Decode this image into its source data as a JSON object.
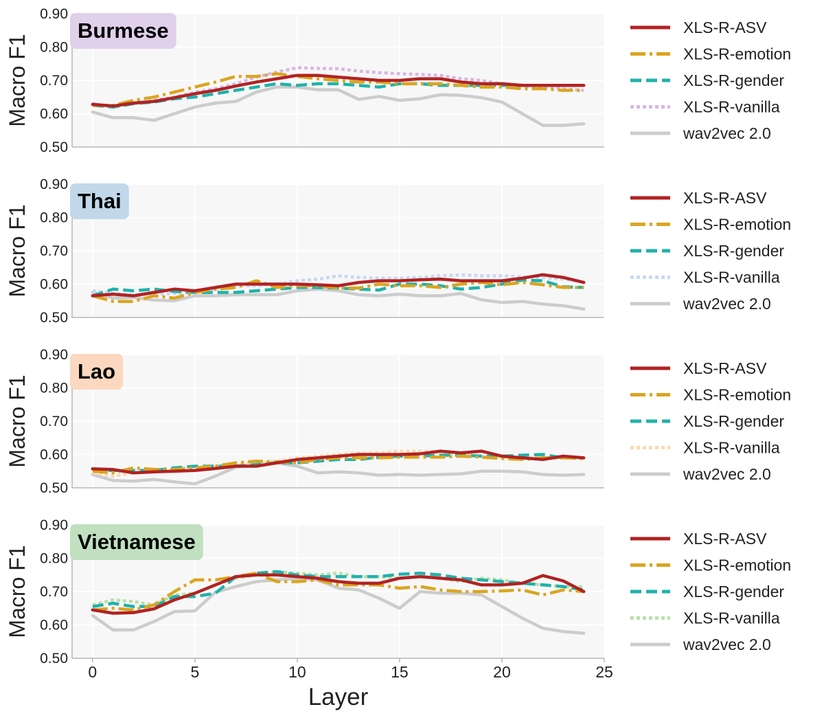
{
  "chart_data": {
    "type": "line",
    "xlabel": "Layer",
    "ylabel": "Macro F1",
    "xlim": [
      -1,
      25
    ],
    "ylim": [
      0.5,
      0.9
    ],
    "xticks": [
      "0",
      "5",
      "10",
      "15",
      "20",
      "25"
    ],
    "yticks": [
      "0.50",
      "0.60",
      "0.70",
      "0.80",
      "0.90"
    ],
    "x": [
      0,
      1,
      2,
      3,
      4,
      5,
      6,
      7,
      8,
      9,
      10,
      11,
      12,
      13,
      14,
      15,
      16,
      17,
      18,
      19,
      20,
      21,
      22,
      23,
      24
    ],
    "colors": {
      "asv": "#b22222",
      "emotion": "#daa520",
      "gender": "#20b2aa",
      "wav2vec": "#cccccc"
    },
    "panels": [
      {
        "title": "Burmese",
        "title_bg": "#e0d0ea",
        "vanilla_color": "#d8b8e0",
        "series": [
          {
            "name": "XLS-R-ASV",
            "key": "asv",
            "values": [
              0.628,
              0.623,
              0.632,
              0.637,
              0.648,
              0.66,
              0.67,
              0.683,
              0.695,
              0.705,
              0.715,
              0.715,
              0.71,
              0.705,
              0.7,
              0.7,
              0.705,
              0.705,
              0.695,
              0.69,
              0.69,
              0.685,
              0.685,
              0.685,
              0.685
            ]
          },
          {
            "name": "XLS-R-emotion",
            "key": "emotion",
            "values": [
              0.625,
              0.625,
              0.64,
              0.65,
              0.665,
              0.68,
              0.695,
              0.712,
              0.712,
              0.72,
              0.712,
              0.705,
              0.7,
              0.695,
              0.695,
              0.69,
              0.69,
              0.69,
              0.685,
              0.68,
              0.68,
              0.675,
              0.675,
              0.67,
              0.67
            ]
          },
          {
            "name": "XLS-R-gender",
            "key": "gender",
            "values": [
              0.625,
              0.62,
              0.63,
              0.635,
              0.645,
              0.65,
              0.66,
              0.67,
              0.68,
              0.69,
              0.685,
              0.69,
              0.69,
              0.685,
              0.68,
              0.69,
              0.69,
              0.685,
              0.685,
              0.685,
              0.685,
              0.685,
              0.685,
              0.685,
              0.685
            ]
          },
          {
            "name": "XLS-R-vanilla",
            "key": "vanilla",
            "values": [
              0.63,
              0.62,
              0.63,
              0.64,
              0.65,
              0.665,
              0.675,
              0.69,
              0.71,
              0.725,
              0.738,
              0.736,
              0.735,
              0.728,
              0.723,
              0.72,
              0.718,
              0.715,
              0.705,
              0.7,
              0.69,
              0.685,
              0.68,
              0.675,
              0.67
            ]
          },
          {
            "name": "wav2vec 2.0",
            "key": "wav2vec",
            "values": [
              0.605,
              0.588,
              0.588,
              0.58,
              0.6,
              0.62,
              0.632,
              0.637,
              0.665,
              0.68,
              0.68,
              0.672,
              0.672,
              0.643,
              0.652,
              0.64,
              0.645,
              0.657,
              0.655,
              0.648,
              0.635,
              0.6,
              0.565,
              0.565,
              0.57
            ]
          }
        ]
      },
      {
        "title": "Thai",
        "title_bg": "#c0d8ea",
        "vanilla_color": "#c8d8f0",
        "series": [
          {
            "name": "XLS-R-ASV",
            "key": "asv",
            "values": [
              0.565,
              0.57,
              0.565,
              0.575,
              0.585,
              0.58,
              0.59,
              0.6,
              0.6,
              0.6,
              0.6,
              0.598,
              0.595,
              0.605,
              0.61,
              0.61,
              0.613,
              0.615,
              0.61,
              0.61,
              0.61,
              0.618,
              0.628,
              0.62,
              0.605
            ]
          },
          {
            "name": "XLS-R-emotion",
            "key": "emotion",
            "values": [
              0.565,
              0.548,
              0.548,
              0.565,
              0.558,
              0.575,
              0.585,
              0.59,
              0.61,
              0.59,
              0.595,
              0.595,
              0.588,
              0.588,
              0.6,
              0.595,
              0.595,
              0.59,
              0.6,
              0.605,
              0.598,
              0.605,
              0.598,
              0.59,
              0.59
            ]
          },
          {
            "name": "XLS-R-gender",
            "key": "gender",
            "values": [
              0.565,
              0.585,
              0.58,
              0.585,
              0.578,
              0.575,
              0.575,
              0.575,
              0.58,
              0.585,
              0.59,
              0.59,
              0.588,
              0.585,
              0.582,
              0.6,
              0.6,
              0.595,
              0.585,
              0.59,
              0.6,
              0.612,
              0.61,
              0.592,
              0.59
            ]
          },
          {
            "name": "XLS-R-vanilla",
            "key": "vanilla",
            "values": [
              0.58,
              0.572,
              0.568,
              0.57,
              0.572,
              0.575,
              0.585,
              0.595,
              0.595,
              0.6,
              0.61,
              0.615,
              0.625,
              0.62,
              0.618,
              0.618,
              0.62,
              0.625,
              0.628,
              0.625,
              0.625,
              0.622,
              0.62,
              0.615,
              0.605
            ]
          },
          {
            "name": "wav2vec 2.0",
            "key": "wav2vec",
            "values": [
              0.575,
              0.558,
              0.56,
              0.552,
              0.55,
              0.565,
              0.565,
              0.568,
              0.568,
              0.568,
              0.58,
              0.585,
              0.58,
              0.568,
              0.565,
              0.57,
              0.565,
              0.565,
              0.572,
              0.553,
              0.545,
              0.548,
              0.54,
              0.535,
              0.525
            ]
          }
        ]
      },
      {
        "title": "Lao",
        "title_bg": "#fcd8c0",
        "vanilla_color": "#fad8b0",
        "series": [
          {
            "name": "XLS-R-ASV",
            "key": "asv",
            "values": [
              0.557,
              0.555,
              0.545,
              0.548,
              0.55,
              0.552,
              0.558,
              0.565,
              0.565,
              0.575,
              0.585,
              0.59,
              0.595,
              0.6,
              0.6,
              0.6,
              0.602,
              0.61,
              0.605,
              0.61,
              0.595,
              0.59,
              0.585,
              0.595,
              0.59
            ]
          },
          {
            "name": "XLS-R-emotion",
            "key": "emotion",
            "values": [
              0.55,
              0.545,
              0.56,
              0.555,
              0.555,
              0.56,
              0.565,
              0.575,
              0.58,
              0.578,
              0.575,
              0.585,
              0.59,
              0.59,
              0.59,
              0.592,
              0.592,
              0.592,
              0.595,
              0.592,
              0.588,
              0.585,
              0.59,
              0.59,
              0.588
            ]
          },
          {
            "name": "XLS-R-gender",
            "key": "gender",
            "values": [
              0.555,
              0.552,
              0.552,
              0.552,
              0.56,
              0.565,
              0.565,
              0.565,
              0.57,
              0.575,
              0.575,
              0.58,
              0.585,
              0.585,
              0.592,
              0.595,
              0.595,
              0.598,
              0.598,
              0.595,
              0.595,
              0.598,
              0.6,
              0.59,
              0.59
            ]
          },
          {
            "name": "XLS-R-vanilla",
            "key": "vanilla",
            "values": [
              0.545,
              0.535,
              0.545,
              0.55,
              0.548,
              0.555,
              0.562,
              0.57,
              0.575,
              0.58,
              0.59,
              0.595,
              0.6,
              0.605,
              0.605,
              0.61,
              0.61,
              0.608,
              0.6,
              0.595,
              0.592,
              0.59,
              0.59,
              0.59,
              0.59
            ]
          },
          {
            "name": "wav2vec 2.0",
            "key": "wav2vec",
            "values": [
              0.54,
              0.522,
              0.52,
              0.525,
              0.518,
              0.512,
              0.535,
              0.562,
              0.568,
              0.575,
              0.565,
              0.545,
              0.548,
              0.545,
              0.538,
              0.54,
              0.538,
              0.54,
              0.542,
              0.55,
              0.55,
              0.548,
              0.54,
              0.538,
              0.54
            ]
          }
        ]
      },
      {
        "title": "Vietnamese",
        "title_bg": "#c0e0c0",
        "vanilla_color": "#b8e0a8",
        "series": [
          {
            "name": "XLS-R-ASV",
            "key": "asv",
            "values": [
              0.645,
              0.635,
              0.637,
              0.648,
              0.675,
              0.695,
              0.72,
              0.745,
              0.75,
              0.75,
              0.745,
              0.74,
              0.73,
              0.725,
              0.725,
              0.74,
              0.745,
              0.74,
              0.735,
              0.72,
              0.72,
              0.725,
              0.748,
              0.732,
              0.7
            ]
          },
          {
            "name": "XLS-R-emotion",
            "key": "emotion",
            "values": [
              0.645,
              0.65,
              0.645,
              0.66,
              0.7,
              0.735,
              0.735,
              0.745,
              0.755,
              0.73,
              0.73,
              0.735,
              0.72,
              0.72,
              0.72,
              0.71,
              0.715,
              0.705,
              0.7,
              0.7,
              0.702,
              0.705,
              0.69,
              0.705,
              0.7
            ]
          },
          {
            "name": "XLS-R-gender",
            "key": "gender",
            "values": [
              0.655,
              0.665,
              0.655,
              0.655,
              0.685,
              0.685,
              0.695,
              0.745,
              0.755,
              0.76,
              0.75,
              0.745,
              0.745,
              0.745,
              0.745,
              0.752,
              0.755,
              0.75,
              0.74,
              0.735,
              0.73,
              0.725,
              0.72,
              0.715,
              0.705
            ]
          },
          {
            "name": "XLS-R-vanilla",
            "key": "vanilla",
            "values": [
              0.66,
              0.675,
              0.67,
              0.66,
              0.69,
              0.695,
              0.72,
              0.74,
              0.75,
              0.76,
              0.755,
              0.75,
              0.755,
              0.745,
              0.745,
              0.74,
              0.745,
              0.74,
              0.73,
              0.74,
              0.735,
              0.725,
              0.72,
              0.715,
              0.715
            ]
          },
          {
            "name": "wav2vec 2.0",
            "key": "wav2vec",
            "values": [
              0.628,
              0.585,
              0.585,
              0.61,
              0.64,
              0.642,
              0.698,
              0.715,
              0.73,
              0.735,
              0.74,
              0.735,
              0.71,
              0.705,
              0.68,
              0.65,
              0.7,
              0.695,
              0.695,
              0.69,
              0.655,
              0.62,
              0.59,
              0.58,
              0.575
            ]
          }
        ]
      }
    ]
  }
}
